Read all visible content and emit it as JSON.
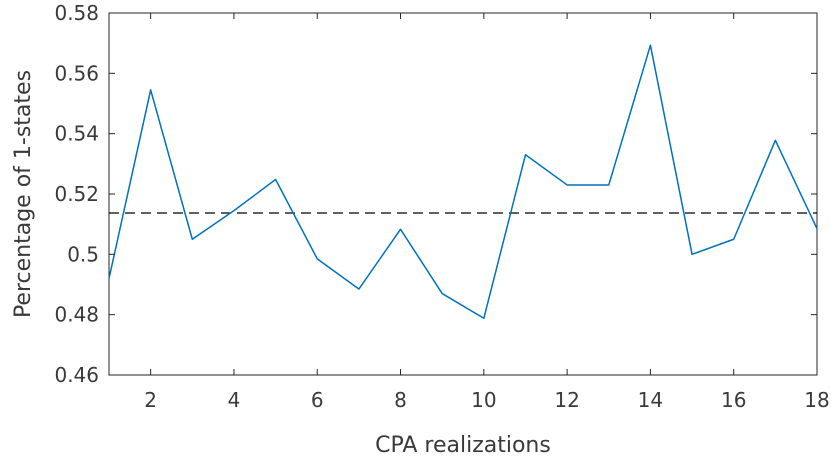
{
  "chart_data": {
    "type": "line",
    "xlabel": "CPA realizations",
    "ylabel": "Percentage of 1-states",
    "xlim": [
      1,
      18
    ],
    "ylim": [
      0.46,
      0.58
    ],
    "xticks": [
      2,
      4,
      6,
      8,
      10,
      12,
      14,
      16,
      18
    ],
    "xtick_labels": [
      "2",
      "4",
      "6",
      "8",
      "10",
      "12",
      "14",
      "16",
      "18"
    ],
    "yticks": [
      0.46,
      0.48,
      0.5,
      0.52,
      0.54,
      0.56,
      0.58
    ],
    "ytick_labels": [
      "0.46",
      "0.48",
      "0.5",
      "0.52",
      "0.54",
      "0.56",
      "0.58"
    ],
    "grid": false,
    "series": [
      {
        "color": "#0072BD",
        "style": "solid",
        "x": [
          1,
          2,
          3,
          4,
          5,
          6,
          7,
          8,
          9,
          10,
          11,
          12,
          13,
          14,
          15,
          16,
          17,
          18
        ],
        "y": [
          0.492,
          0.5545,
          0.505,
          0.5145,
          0.5248,
          0.4985,
          0.4885,
          0.5083,
          0.487,
          0.4788,
          0.533,
          0.523,
          0.523,
          0.5693,
          0.5,
          0.505,
          0.5378,
          0.5085
        ]
      }
    ],
    "reference_lines": [
      {
        "orientation": "horizontal",
        "y": 0.5137,
        "color": "#000000",
        "style": "dashed"
      }
    ]
  }
}
